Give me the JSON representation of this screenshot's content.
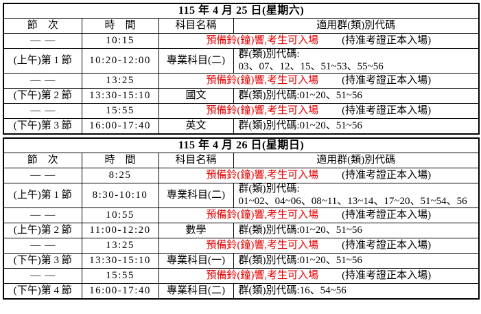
{
  "colors": {
    "notice_red": "#e60000",
    "text": "#000000",
    "border": "#000000",
    "background": "#ffffff"
  },
  "tables": [
    {
      "title": "115 年 4 月 25 日(星期六)",
      "headers": {
        "session": "節　次",
        "time": "時　間",
        "subject": "科目名稱",
        "codes": "適用群(類)別代碼"
      },
      "rows": [
        {
          "type": "bell",
          "session": "——",
          "time": "10:15",
          "notice": "預備鈴(鐘)響,考生可入場",
          "note": "(持准考證正本入場)"
        },
        {
          "type": "exam",
          "session": "(上午)第 1 節",
          "time": "10:20-12:00",
          "subject": "專業科目(二)",
          "codes_line1": "群(類)別代碼:",
          "codes_line2": "03、07、12、15、51~53、55~56"
        },
        {
          "type": "bell",
          "session": "——",
          "time": "13:25",
          "notice": "預備鈴(鐘)響,考生可入場",
          "note": "(持准考證正本入場)"
        },
        {
          "type": "exam",
          "session": "(下午)第 2 節",
          "time": "13:30-15:10",
          "subject": "國文",
          "codes_line1": "群(類)別代碼:01~20、51~56"
        },
        {
          "type": "bell",
          "session": "——",
          "time": "15:55",
          "notice": "預備鈴(鐘)響,考生可入場",
          "note": "(持准考證正本入場)"
        },
        {
          "type": "exam",
          "session": "(下午)第 3 節",
          "time": "16:00-17:40",
          "subject": "英文",
          "codes_line1": "群(類)別代碼:01~20、51~56"
        }
      ]
    },
    {
      "title": "115 年 4 月 26 日(星期日)",
      "headers": {
        "session": "節　次",
        "time": "時　間",
        "subject": "科目名稱",
        "codes": "適用群(類)別代碼"
      },
      "rows": [
        {
          "type": "bell",
          "session": "——",
          "time": "8:25",
          "notice": "預備鈴(鐘)響,考生可入場",
          "note": "(持准考證正本入場)"
        },
        {
          "type": "exam",
          "session": "(上午)第 1 節",
          "time": "8:30-10:10",
          "subject": "專業科目(二)",
          "codes_line1": "群(類)別代碼:",
          "codes_line2": "01~02、04~06、08~11、13~14、17~20、51~54、56"
        },
        {
          "type": "bell",
          "session": "——",
          "time": "10:55",
          "notice": "預備鈴(鐘)響,考生可入場",
          "note": "(持准考證正本入場)"
        },
        {
          "type": "exam",
          "session": "(上午)第 2 節",
          "time": "11:00-12:20",
          "subject": "數學",
          "codes_line1": "群(類)別代碼:01~20、51~56"
        },
        {
          "type": "bell",
          "session": "——",
          "time": "13:25",
          "notice": "預備鈴(鐘)響,考生可入場",
          "note": "(持准考證正本入場)"
        },
        {
          "type": "exam",
          "session": "(下午)第 3 節",
          "time": "13:30-15:10",
          "subject": "專業科目(一)",
          "codes_line1": "群(類)別代碼:01~20、51~56"
        },
        {
          "type": "bell",
          "session": "——",
          "time": "15:55",
          "notice": "預備鈴(鐘)響,考生可入場",
          "note": "(持准考證正本入場)"
        },
        {
          "type": "exam",
          "session": "(下午)第 4 節",
          "time": "16:00-17:40",
          "subject": "專業科目(二)",
          "codes_line1": "群(類)別代碼:16、54~56"
        }
      ]
    }
  ]
}
